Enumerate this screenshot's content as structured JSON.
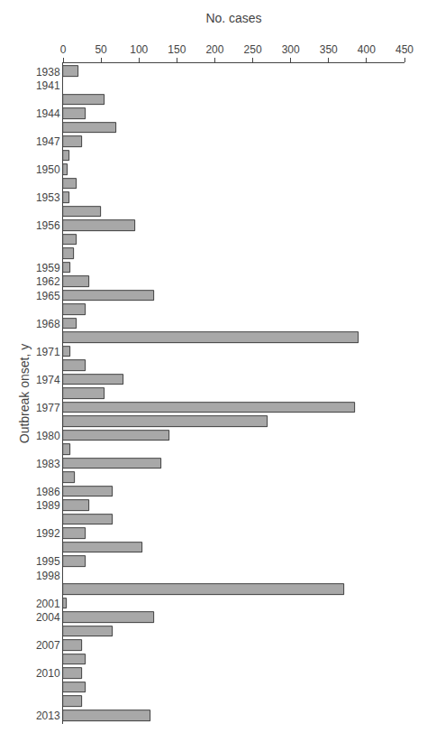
{
  "chart_data": {
    "type": "bar",
    "orientation": "horizontal",
    "xlabel": "No. cases",
    "ylabel": "Outbreak onset, y",
    "categories": [
      "1938",
      "1941",
      null,
      "1944",
      null,
      "1947",
      null,
      "1950",
      null,
      "1953",
      null,
      "1956",
      null,
      null,
      "1959",
      "1962",
      "1965",
      null,
      "1968",
      null,
      "1971",
      null,
      "1974",
      null,
      "1977",
      null,
      "1980",
      null,
      "1983",
      null,
      "1986",
      "1989",
      null,
      "1992",
      null,
      "1995",
      "1998",
      null,
      "2001",
      "2004",
      null,
      "2007",
      null,
      "2010",
      null,
      null,
      "2013"
    ],
    "values": [
      20,
      null,
      55,
      30,
      70,
      25,
      8,
      6,
      18,
      8,
      50,
      95,
      18,
      14,
      10,
      35,
      120,
      30,
      18,
      390,
      10,
      30,
      80,
      55,
      385,
      270,
      140,
      10,
      130,
      15,
      65,
      35,
      65,
      30,
      105,
      30,
      null,
      370,
      5,
      120,
      65,
      25,
      30,
      25,
      30,
      25,
      115
    ],
    "color": "#a8a8a8",
    "xlim": [
      0,
      450
    ],
    "xticks": [
      0,
      50,
      100,
      150,
      200,
      250,
      300,
      350,
      400,
      450
    ],
    "grid": false
  }
}
